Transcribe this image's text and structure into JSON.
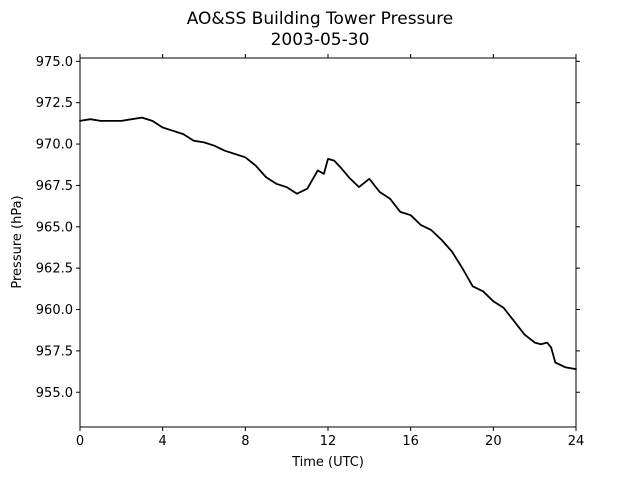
{
  "chart_data": {
    "type": "line",
    "title": "AO&SS Building Tower Pressure",
    "subtitle": "2003-05-30",
    "xlabel": "Time (UTC)",
    "ylabel": "Pressure (hPa)",
    "xlim": [
      0,
      24
    ],
    "ylim": [
      952.9,
      975.2
    ],
    "xticks": [
      0,
      4,
      8,
      12,
      16,
      20,
      24
    ],
    "yticks": [
      955.0,
      957.5,
      960.0,
      962.5,
      965.0,
      967.5,
      970.0,
      972.5,
      975.0
    ],
    "ytick_labels": [
      "955.0",
      "957.5",
      "960.0",
      "962.5",
      "965.0",
      "967.5",
      "970.0",
      "972.5",
      "975.0"
    ],
    "grid": false,
    "legend": false,
    "series": [
      {
        "color": "#000000",
        "x": [
          0,
          0.5,
          1,
          1.5,
          2,
          2.5,
          3,
          3.5,
          4,
          4.5,
          5,
          5.5,
          6,
          6.5,
          7,
          7.5,
          8,
          8.5,
          9,
          9.5,
          10,
          10.5,
          11,
          11.5,
          11.8,
          12,
          12.3,
          12.6,
          13,
          13.5,
          14,
          14.5,
          15,
          15.5,
          16,
          16.5,
          17,
          17.5,
          18,
          18.5,
          19,
          19.5,
          20,
          20.5,
          21,
          21.5,
          22,
          22.3,
          22.6,
          22.8,
          23,
          23.5,
          24
        ],
        "y": [
          971.4,
          971.5,
          971.4,
          971.4,
          971.4,
          971.5,
          971.6,
          971.4,
          971.0,
          970.8,
          970.6,
          970.2,
          970.1,
          969.9,
          969.6,
          969.4,
          969.2,
          968.7,
          968.0,
          967.6,
          967.4,
          967.0,
          967.3,
          968.4,
          968.2,
          969.1,
          969.0,
          968.6,
          968.0,
          967.4,
          967.9,
          967.1,
          966.7,
          965.9,
          965.7,
          965.1,
          964.8,
          964.2,
          963.5,
          962.5,
          961.4,
          961.1,
          960.5,
          960.1,
          959.3,
          958.5,
          958.0,
          957.9,
          958.0,
          957.7,
          956.8,
          956.5,
          956.4
        ]
      }
    ]
  }
}
